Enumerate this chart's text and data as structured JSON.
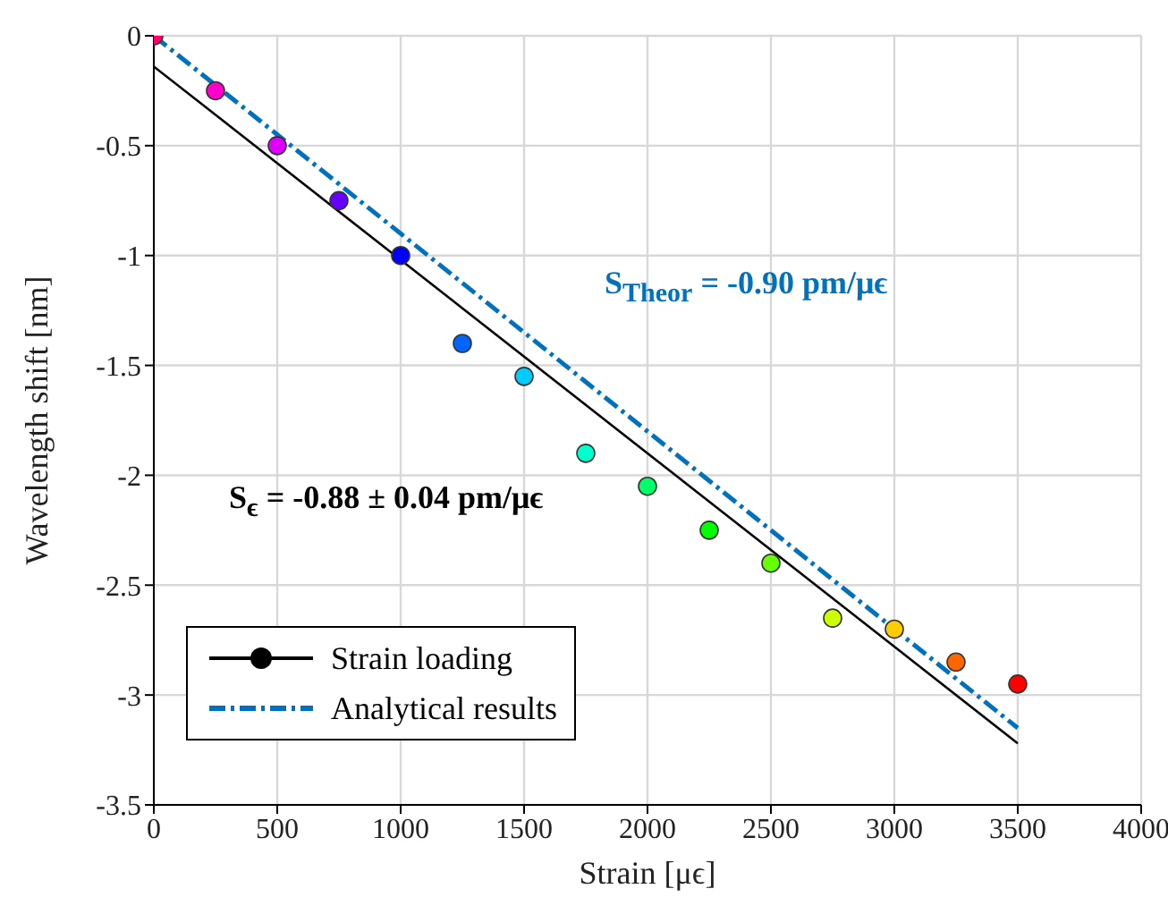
{
  "chart_data": {
    "type": "scatter",
    "xlabel": "Strain [μϵ]",
    "ylabel": "Wavelength shift [nm]",
    "xlim": [
      0,
      4000
    ],
    "xticks": [
      0,
      500,
      1000,
      1500,
      2000,
      2500,
      3000,
      3500,
      4000
    ],
    "ylim": [
      -3.5,
      0
    ],
    "yticks": [
      -3.5,
      -3,
      -2.5,
      -2,
      -1.5,
      -1,
      -0.5,
      0
    ],
    "grid": true,
    "legend": "bottom left",
    "series": [
      {
        "marker": "circle",
        "x": [
          0,
          250,
          500,
          750,
          1000,
          1250,
          1500,
          1750,
          2000,
          2250,
          2500,
          2750,
          3000,
          3250,
          3500
        ],
        "values": [
          0,
          -0.25,
          -0.5,
          -0.75,
          -1.0,
          -1.4,
          -1.55,
          -1.9,
          -2.05,
          -2.25,
          -2.4,
          -2.65,
          -2.7,
          -2.85,
          -2.95
        ],
        "colors": [
          "#ff0066",
          "#ff00cc",
          "#dd00ff",
          "#6600ff",
          "#0000ff",
          "#0066ff",
          "#00ccff",
          "#00ffcc",
          "#00ff66",
          "#00ff00",
          "#66ff00",
          "#ccff00",
          "#ffcc00",
          "#ff6600",
          "#ff0000"
        ]
      },
      {
        "type": "line",
        "name": "Strain loading",
        "color": "#000000",
        "x": [
          0,
          3500
        ],
        "values": [
          -0.14,
          -3.22
        ],
        "line_style": "solid"
      },
      {
        "type": "line",
        "name": "Analytical results",
        "color": "#0072bd",
        "x": [
          0,
          3500
        ],
        "values": [
          0,
          -3.15
        ],
        "line_style": "dashed"
      }
    ],
    "annotations": [
      "S$_{Theor}$ = -0.90 pm/μϵ",
      "S$_{ϵ}$ = -0.88 ± 0.04 pm/μϵ"
    ]
  }
}
